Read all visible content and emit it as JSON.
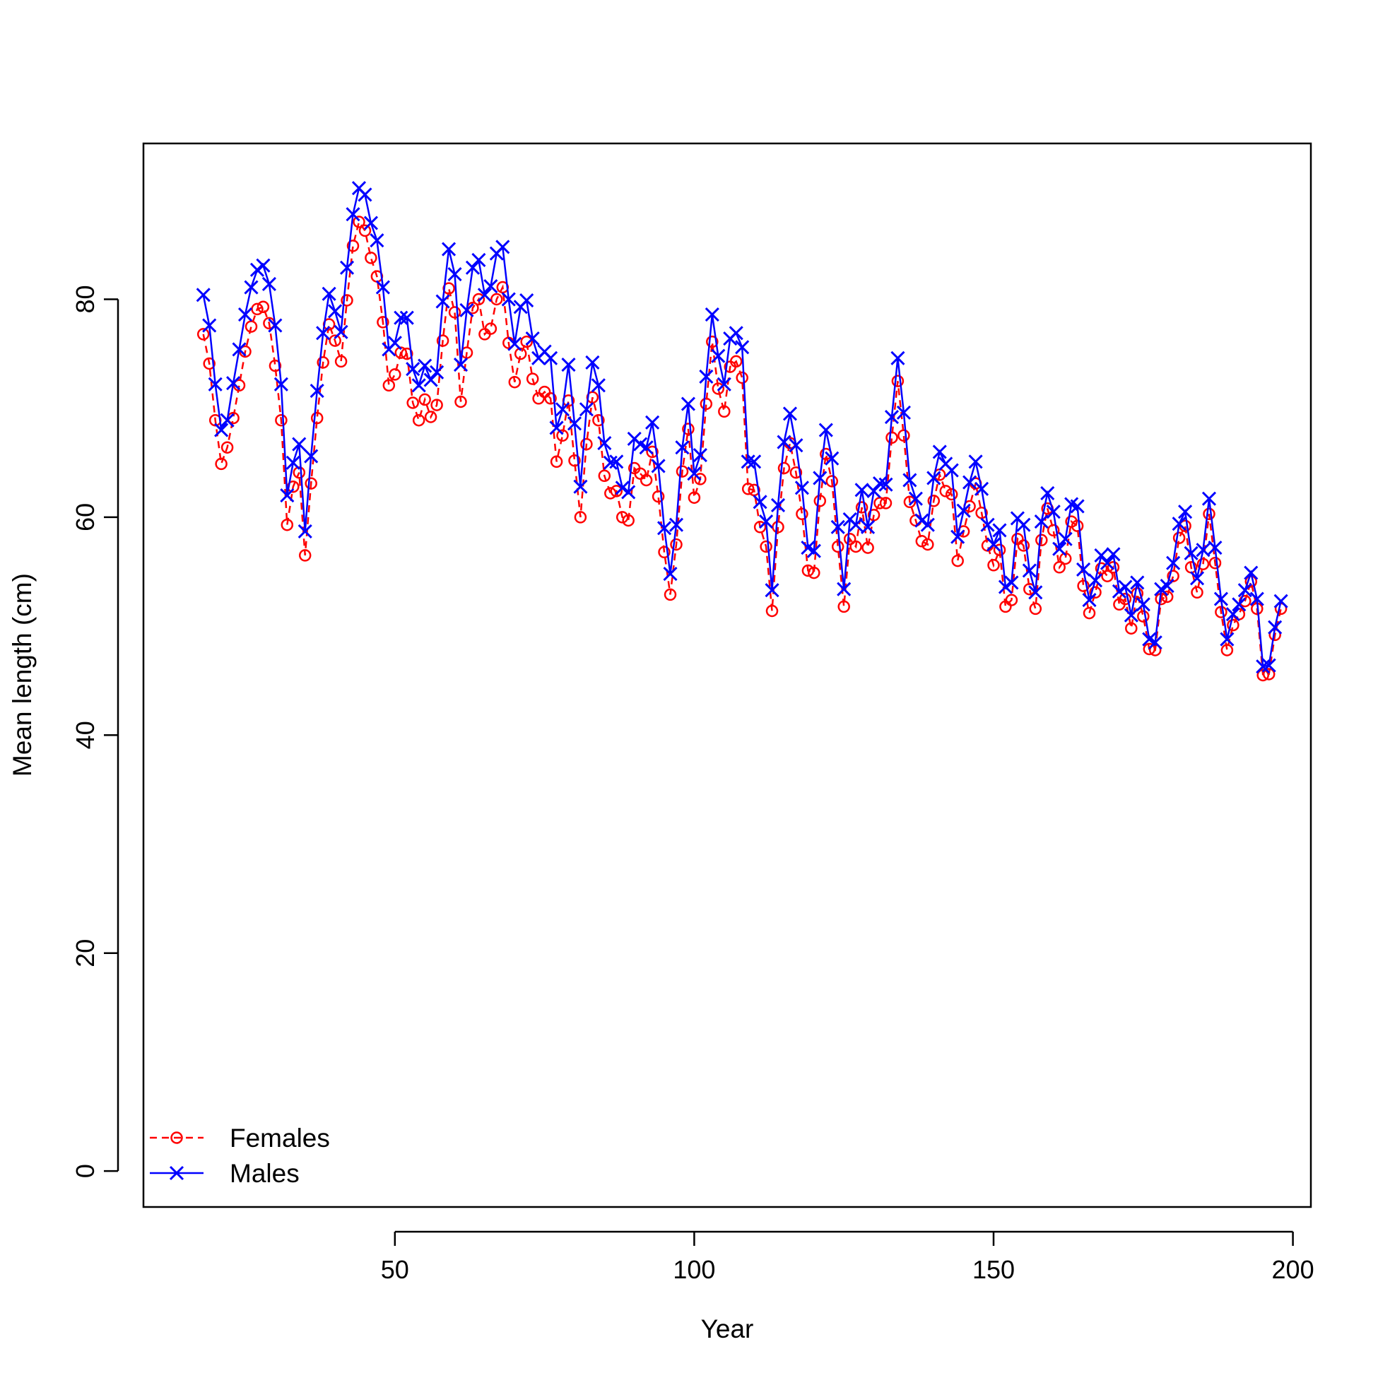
{
  "chart_data": {
    "type": "line",
    "title": "",
    "xlabel": "Year",
    "ylabel": "Mean length (cm)",
    "xlim": [
      8,
      203
    ],
    "ylim": [
      -3.3,
      94.3
    ],
    "xticks": [
      50,
      100,
      150,
      200
    ],
    "yticks": [
      0,
      20,
      40,
      60,
      80
    ],
    "xtick_labels": [
      "50",
      "100",
      "150",
      "200"
    ],
    "ytick_labels": [
      "0",
      "20",
      "40",
      "60",
      "80"
    ],
    "grid": false,
    "legend_position": "bottom-left",
    "x_start": 18,
    "series": [
      {
        "name": "Females",
        "color": "#ff0000",
        "line": "dashed",
        "marker": "circle",
        "values": [
          76.8,
          74.1,
          68.9,
          64.9,
          66.4,
          69.1,
          72.1,
          75.2,
          77.5,
          79.1,
          79.3,
          77.8,
          73.9,
          68.9,
          59.3,
          62.8,
          64.1,
          56.5,
          63.1,
          69.1,
          74.2,
          77.7,
          76.2,
          74.3,
          79.9,
          84.9,
          87.1,
          86.3,
          83.8,
          82.1,
          77.9,
          72.1,
          73.1,
          75.1,
          75.0,
          70.5,
          68.9,
          70.8,
          69.2,
          70.3,
          76.2,
          81.0,
          78.8,
          70.6,
          75.1,
          79.2,
          80.0,
          76.8,
          77.3,
          80.0,
          81.1,
          76.0,
          72.4,
          75.0,
          76.1,
          72.7,
          70.9,
          71.5,
          70.9,
          65.1,
          67.5,
          70.7,
          65.2,
          60.0,
          66.7,
          71.0,
          68.9,
          63.8,
          62.2,
          62.4,
          60.0,
          59.7,
          64.5,
          64.0,
          63.4,
          66.0,
          61.9,
          56.8,
          52.9,
          57.5,
          64.2,
          68.1,
          61.8,
          63.5,
          70.4,
          76.1,
          71.8,
          69.7,
          73.8,
          74.3,
          72.8,
          62.6,
          62.5,
          59.1,
          57.3,
          51.4,
          59.1,
          64.5,
          66.8,
          64.1,
          60.3,
          55.1,
          54.9,
          61.5,
          65.8,
          63.3,
          57.3,
          51.8,
          58.0,
          57.3,
          60.9,
          57.2,
          60.2,
          61.3,
          61.3,
          67.3,
          72.5,
          67.5,
          61.4,
          59.7,
          57.8,
          57.5,
          61.5,
          63.9,
          62.4,
          62.1,
          56.0,
          58.7,
          61.0,
          63.1,
          60.4,
          57.4,
          55.6,
          57.0,
          51.8,
          52.4,
          58.0,
          57.4,
          53.4,
          51.6,
          57.9,
          60.8,
          58.8,
          55.4,
          56.2,
          59.6,
          59.2,
          53.7,
          51.2,
          53.1,
          55.3,
          54.6,
          55.4,
          52.0,
          52.5,
          49.8,
          53.0,
          50.9,
          47.9,
          47.8,
          52.5,
          52.7,
          54.6,
          58.1,
          59.2,
          55.4,
          53.1,
          55.7,
          60.3,
          55.8,
          51.3,
          47.8,
          50.1,
          51.1,
          52.3,
          54.1,
          51.6,
          45.5,
          45.6,
          49.2,
          51.6
        ]
      },
      {
        "name": "Males",
        "color": "#0000ff",
        "line": "solid",
        "marker": "x",
        "values": [
          80.4,
          77.6,
          72.2,
          68.0,
          68.9,
          72.3,
          75.4,
          78.6,
          81.1,
          82.7,
          83.1,
          81.4,
          77.6,
          72.2,
          62.0,
          65.0,
          66.7,
          58.7,
          65.6,
          71.6,
          76.9,
          80.5,
          78.9,
          77.0,
          82.9,
          87.8,
          90.2,
          89.6,
          87.0,
          85.4,
          81.1,
          75.4,
          76.0,
          78.3,
          78.3,
          73.6,
          72.1,
          73.9,
          72.6,
          73.3,
          79.8,
          84.6,
          82.3,
          74.0,
          79.0,
          82.9,
          83.6,
          80.4,
          81.2,
          84.2,
          84.8,
          80.0,
          75.9,
          79.3,
          79.9,
          76.4,
          74.6,
          75.2,
          74.6,
          68.2,
          69.9,
          74.0,
          68.6,
          62.8,
          69.9,
          74.2,
          72.1,
          66.8,
          65.0,
          65.1,
          62.7,
          62.3,
          67.2,
          66.7,
          66.4,
          68.7,
          64.7,
          59.0,
          54.8,
          59.3,
          66.4,
          70.4,
          64.0,
          65.7,
          72.9,
          78.6,
          74.8,
          72.2,
          76.4,
          76.9,
          75.6,
          65.1,
          65.1,
          61.4,
          59.6,
          53.3,
          61.1,
          66.9,
          69.5,
          66.6,
          62.7,
          57.2,
          56.9,
          63.6,
          68.0,
          65.4,
          59.1,
          53.4,
          59.8,
          59.3,
          62.5,
          59.1,
          62.4,
          63.1,
          63.0,
          69.2,
          74.6,
          69.6,
          63.4,
          61.7,
          59.7,
          59.3,
          63.6,
          66.0,
          64.9,
          64.3,
          58.2,
          60.6,
          63.2,
          65.1,
          62.6,
          59.3,
          57.5,
          58.8,
          53.6,
          54.0,
          59.9,
          59.3,
          55.1,
          53.1,
          59.6,
          62.2,
          60.5,
          57.1,
          58.0,
          61.2,
          61.0,
          55.2,
          52.4,
          54.2,
          56.5,
          55.8,
          56.6,
          53.2,
          53.6,
          51.0,
          54.0,
          52.0,
          48.8,
          48.5,
          53.4,
          53.7,
          55.8,
          59.4,
          60.5,
          56.7,
          54.4,
          57.0,
          61.7,
          57.2,
          52.5,
          48.8,
          51.1,
          52.0,
          53.3,
          54.9,
          52.5,
          46.3,
          46.4,
          49.9,
          52.3
        ]
      }
    ]
  }
}
